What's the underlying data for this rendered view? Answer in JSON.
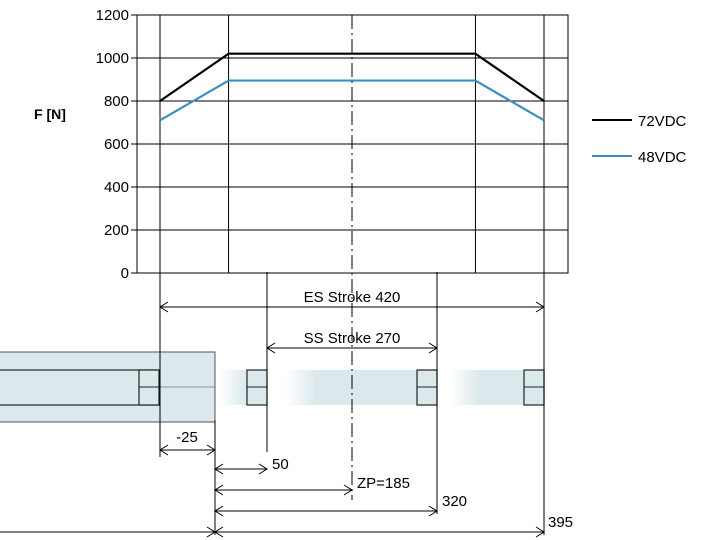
{
  "chart_data": {
    "type": "line",
    "ylabel": "F [N]",
    "ylim": [
      0,
      1200
    ],
    "y_ticks": [
      "0",
      "200",
      "400",
      "600",
      "800",
      "1000",
      "1200"
    ],
    "grid": true,
    "legend_placement": "right",
    "series": [
      {
        "name": "72VDC",
        "color": "#000000",
        "points": [
          [
            -25,
            800
          ],
          [
            50,
            1020
          ],
          [
            320,
            1020
          ],
          [
            395,
            800
          ]
        ]
      },
      {
        "name": "48VDC",
        "color": "#3a8fbf",
        "points": [
          [
            -25,
            710
          ],
          [
            50,
            895
          ],
          [
            320,
            895
          ],
          [
            395,
            710
          ]
        ]
      }
    ]
  },
  "dimensions": {
    "es_stroke": "ES Stroke 420",
    "ss_stroke": "SS Stroke 270",
    "neg25": "-25",
    "d50": "50",
    "zp": "ZP=185",
    "d320": "320",
    "d395": "395"
  }
}
